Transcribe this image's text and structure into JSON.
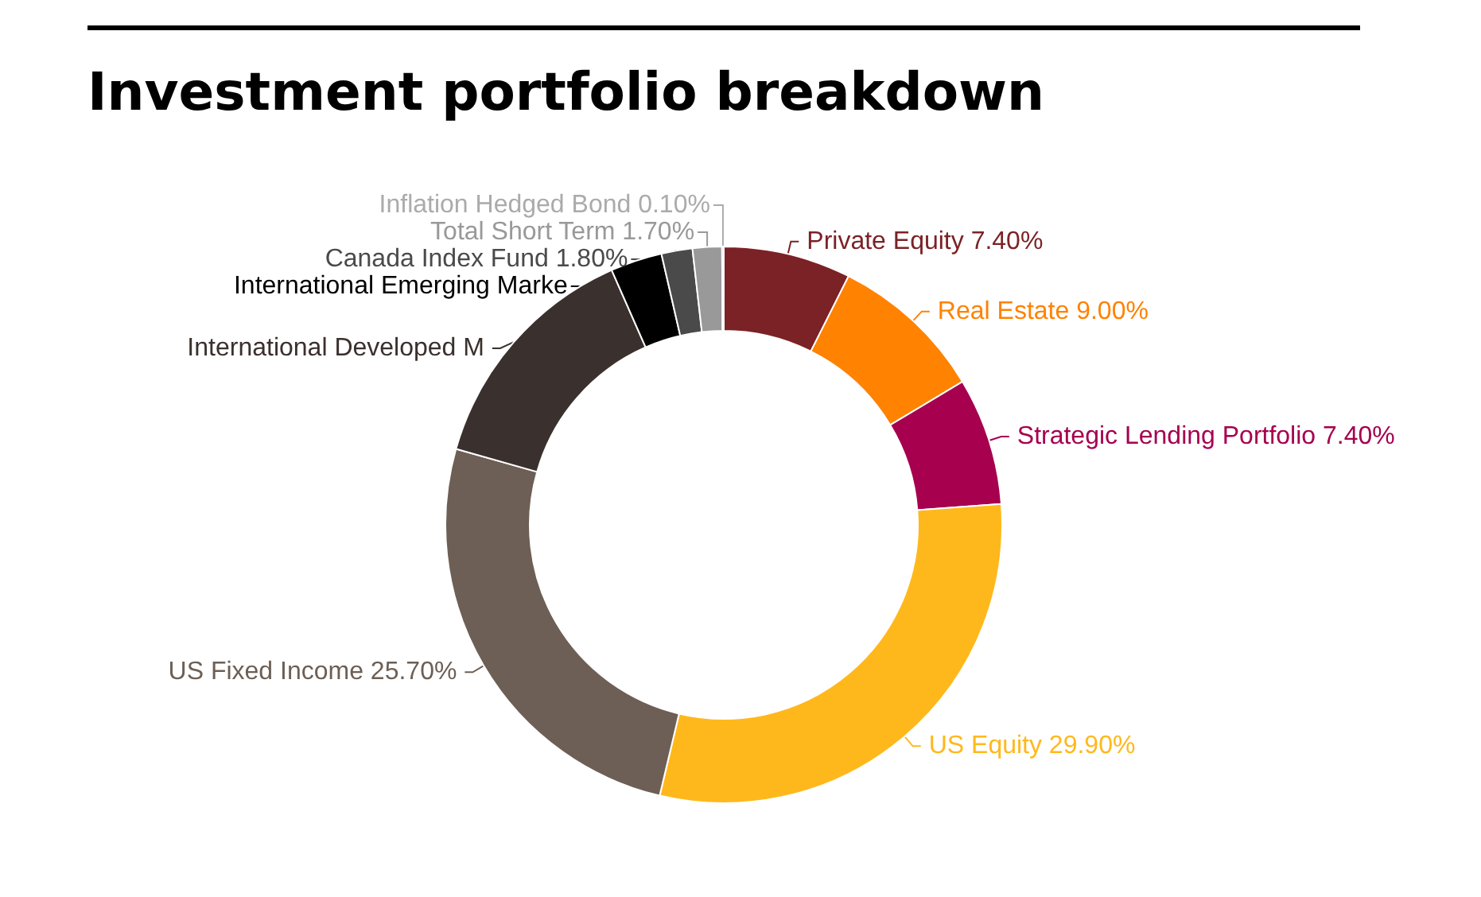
{
  "chart_data": {
    "type": "donut",
    "title": "Investment portfolio breakdown",
    "categories": [
      "Private Equity",
      "Real Estate",
      "Strategic Lending Portfolio",
      "US Equity",
      "US Fixed Income",
      "International Developed M",
      "International Emerging Marke",
      "Canada Index Fund",
      "Total Short Term",
      "Inflation Hedged Bond"
    ],
    "values": [
      7.4,
      9.0,
      7.4,
      29.9,
      25.7,
      14.0,
      3.0,
      1.8,
      1.7,
      0.1
    ],
    "value_labels": [
      "7.40%",
      "9.00%",
      "7.40%",
      "29.90%",
      "25.70%",
      null,
      null,
      "1.80%",
      "1.70%",
      "0.10%"
    ],
    "colors": [
      "#7b2226",
      "#ff8200",
      "#a6004f",
      "#ffb81c",
      "#6d5f55",
      "#3a302d",
      "#000000",
      "#4a4a4a",
      "#999999",
      "#ababab"
    ],
    "legend": false
  }
}
